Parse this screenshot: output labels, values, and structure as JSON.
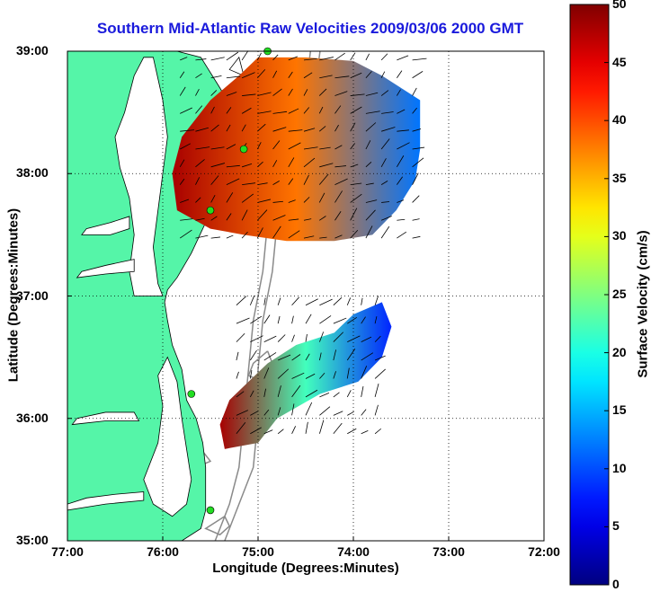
{
  "title": "Southern Mid-Atlantic Raw Velocities 2009/03/06 2000 GMT",
  "xlabel": "Longitude (Degrees:Minutes)",
  "ylabel": "Latitude (Degrees:Minutes)",
  "colorbar_label": "Surface Velocity (cm/s)",
  "x_ticks": [
    "77:00",
    "76:00",
    "75:00",
    "74:00",
    "73:00",
    "72:00"
  ],
  "y_ticks": [
    "39:00",
    "38:00",
    "37:00",
    "36:00",
    "35:00"
  ],
  "colorbar_ticks": [
    "50",
    "45",
    "40",
    "35",
    "30",
    "25",
    "20",
    "15",
    "10",
    "5",
    "0"
  ],
  "colors": {
    "land": "#55f5a8",
    "title": "#1a1adc",
    "bathymetry": "#8a8a8a",
    "station": "#22dd22"
  },
  "chart_data": {
    "type": "map",
    "x_range_deg": [
      -77,
      -72
    ],
    "y_range_deg": [
      35,
      39
    ],
    "colorbar_range_cms": [
      0,
      50
    ],
    "grid": true,
    "fields": [
      {
        "name": "",
        "region": "north",
        "lon_range": [
          -75.9,
          -73.3
        ],
        "lat_range": [
          37.4,
          39.0
        ],
        "speed_cms_approx": {
          "west_edge": 48,
          "center": 38,
          "east_edge": 12
        }
      },
      {
        "name": "",
        "region": "south",
        "lon_range": [
          -75.3,
          -73.7
        ],
        "lat_range": [
          35.8,
          37.0
        ],
        "speed_cms_approx": {
          "west_edge": 48,
          "center": 22,
          "east_edge": 8
        }
      }
    ],
    "stations": [
      {
        "lon": -74.9,
        "lat": 39.0
      },
      {
        "lon": -75.15,
        "lat": 38.2
      },
      {
        "lon": -75.5,
        "lat": 37.7
      },
      {
        "lon": -75.7,
        "lat": 36.2
      },
      {
        "lon": -75.5,
        "lat": 35.25
      }
    ]
  }
}
